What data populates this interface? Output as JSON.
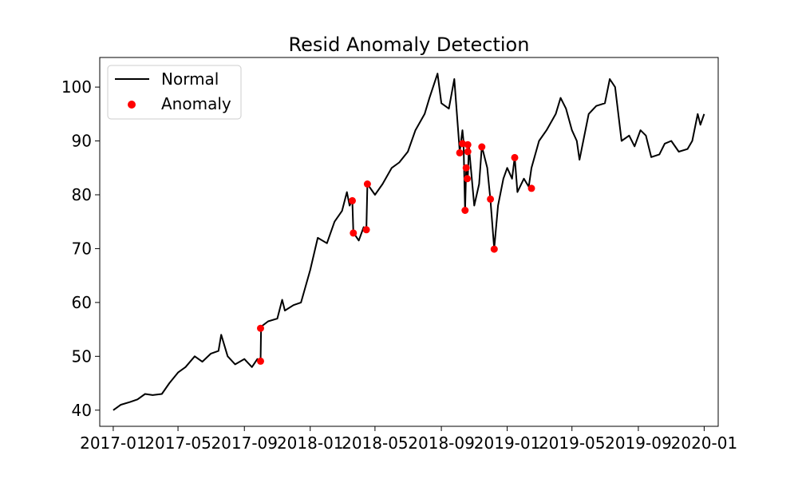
{
  "chart_data": {
    "type": "line",
    "title": "Resid Anomaly Detection",
    "xlabel": "",
    "ylabel": "",
    "x_ticks": [
      "2017-01",
      "2017-05",
      "2017-09",
      "2018-01",
      "2018-05",
      "2018-09",
      "2019-01",
      "2019-05",
      "2019-09",
      "2020-01"
    ],
    "y_ticks": [
      "40",
      "50",
      "60",
      "70",
      "80",
      "90",
      "100"
    ],
    "ylim": [
      37,
      105.5
    ],
    "xlim": [
      "2016-12-07",
      "2020-01-27"
    ],
    "grid": false,
    "legend": {
      "position": "upper left",
      "entries": [
        "Normal",
        "Anomaly"
      ]
    },
    "colors": {
      "line": "#000000",
      "anomaly": "#ff0000"
    },
    "series": [
      {
        "name": "Normal",
        "kind": "line",
        "points": [
          [
            "2017-01-01",
            40.0
          ],
          [
            "2017-01-15",
            41.0
          ],
          [
            "2017-02-01",
            41.5
          ],
          [
            "2017-02-15",
            42.0
          ],
          [
            "2017-03-01",
            43.0
          ],
          [
            "2017-03-15",
            42.8
          ],
          [
            "2017-04-01",
            43.0
          ],
          [
            "2017-04-15",
            45.0
          ],
          [
            "2017-05-01",
            47.0
          ],
          [
            "2017-05-15",
            48.0
          ],
          [
            "2017-06-01",
            50.0
          ],
          [
            "2017-06-15",
            49.0
          ],
          [
            "2017-07-01",
            50.5
          ],
          [
            "2017-07-15",
            51.0
          ],
          [
            "2017-07-20",
            54.0
          ],
          [
            "2017-08-01",
            50.0
          ],
          [
            "2017-08-15",
            48.5
          ],
          [
            "2017-09-01",
            49.5
          ],
          [
            "2017-09-15",
            48.0
          ],
          [
            "2017-09-25",
            49.5
          ],
          [
            "2017-10-01",
            49.0
          ],
          [
            "2017-10-02",
            55.5
          ],
          [
            "2017-10-15",
            56.5
          ],
          [
            "2017-11-01",
            57.0
          ],
          [
            "2017-11-10",
            60.5
          ],
          [
            "2017-11-15",
            58.5
          ],
          [
            "2017-12-01",
            59.5
          ],
          [
            "2017-12-15",
            60.0
          ],
          [
            "2018-01-01",
            66.0
          ],
          [
            "2018-01-15",
            72.0
          ],
          [
            "2018-02-01",
            71.0
          ],
          [
            "2018-02-15",
            75.0
          ],
          [
            "2018-03-01",
            77.0
          ],
          [
            "2018-03-10",
            80.5
          ],
          [
            "2018-03-15",
            78.0
          ],
          [
            "2018-03-20",
            79.0
          ],
          [
            "2018-03-22",
            73.0
          ],
          [
            "2018-04-01",
            71.5
          ],
          [
            "2018-04-10",
            74.0
          ],
          [
            "2018-04-15",
            73.5
          ],
          [
            "2018-04-17",
            82.0
          ],
          [
            "2018-05-01",
            80.0
          ],
          [
            "2018-05-15",
            82.0
          ],
          [
            "2018-06-01",
            85.0
          ],
          [
            "2018-06-15",
            86.0
          ],
          [
            "2018-07-01",
            88.0
          ],
          [
            "2018-07-15",
            92.0
          ],
          [
            "2018-08-01",
            95.0
          ],
          [
            "2018-08-10",
            98.0
          ],
          [
            "2018-08-25",
            102.5
          ],
          [
            "2018-09-01",
            97.0
          ],
          [
            "2018-09-15",
            96.0
          ],
          [
            "2018-09-25",
            101.5
          ],
          [
            "2018-10-05",
            88.0
          ],
          [
            "2018-10-10",
            92.0
          ],
          [
            "2018-10-12",
            90.0
          ],
          [
            "2018-10-15",
            77.0
          ],
          [
            "2018-10-17",
            85.0
          ],
          [
            "2018-10-20",
            83.0
          ],
          [
            "2018-10-22",
            89.0
          ],
          [
            "2018-11-01",
            78.0
          ],
          [
            "2018-11-10",
            82.0
          ],
          [
            "2018-11-15",
            89.0
          ],
          [
            "2018-11-25",
            85.0
          ],
          [
            "2018-12-01",
            79.0
          ],
          [
            "2018-12-08",
            70.0
          ],
          [
            "2018-12-15",
            78.0
          ],
          [
            "2018-12-25",
            83.0
          ],
          [
            "2019-01-01",
            85.0
          ],
          [
            "2019-01-10",
            83.0
          ],
          [
            "2019-01-15",
            87.0
          ],
          [
            "2019-01-20",
            80.5
          ],
          [
            "2019-02-01",
            83.0
          ],
          [
            "2019-02-10",
            81.5
          ],
          [
            "2019-02-15",
            85.0
          ],
          [
            "2019-03-01",
            90.0
          ],
          [
            "2019-03-15",
            92.0
          ],
          [
            "2019-04-01",
            95.0
          ],
          [
            "2019-04-10",
            98.0
          ],
          [
            "2019-04-20",
            96.0
          ],
          [
            "2019-05-01",
            92.0
          ],
          [
            "2019-05-10",
            90.0
          ],
          [
            "2019-05-15",
            86.5
          ],
          [
            "2019-06-01",
            95.0
          ],
          [
            "2019-06-15",
            96.5
          ],
          [
            "2019-07-01",
            97.0
          ],
          [
            "2019-07-10",
            101.5
          ],
          [
            "2019-07-20",
            100.0
          ],
          [
            "2019-08-01",
            90.0
          ],
          [
            "2019-08-15",
            91.0
          ],
          [
            "2019-08-25",
            89.0
          ],
          [
            "2019-09-05",
            92.0
          ],
          [
            "2019-09-15",
            91.0
          ],
          [
            "2019-09-25",
            87.0
          ],
          [
            "2019-10-10",
            87.5
          ],
          [
            "2019-10-20",
            89.5
          ],
          [
            "2019-11-01",
            90.0
          ],
          [
            "2019-11-15",
            88.0
          ],
          [
            "2019-12-01",
            88.5
          ],
          [
            "2019-12-10",
            90.0
          ],
          [
            "2019-12-20",
            95.0
          ],
          [
            "2019-12-25",
            93.0
          ],
          [
            "2020-01-01",
            95.0
          ]
        ]
      },
      {
        "name": "Anomaly",
        "kind": "scatter",
        "points": [
          [
            "2017-10-01",
            55.2
          ],
          [
            "2017-10-01",
            49.1
          ],
          [
            "2018-03-20",
            78.9
          ],
          [
            "2018-03-22",
            72.9
          ],
          [
            "2018-04-15",
            73.5
          ],
          [
            "2018-04-17",
            82.0
          ],
          [
            "2018-10-05",
            87.8
          ],
          [
            "2018-10-10",
            89.5
          ],
          [
            "2018-10-15",
            77.1
          ],
          [
            "2018-10-17",
            85.0
          ],
          [
            "2018-10-19",
            83.0
          ],
          [
            "2018-10-20",
            89.3
          ],
          [
            "2018-10-20",
            88.0
          ],
          [
            "2018-11-15",
            88.9
          ],
          [
            "2018-12-01",
            79.2
          ],
          [
            "2018-12-08",
            69.9
          ],
          [
            "2019-01-15",
            86.9
          ],
          [
            "2019-02-15",
            81.2
          ]
        ]
      }
    ]
  }
}
